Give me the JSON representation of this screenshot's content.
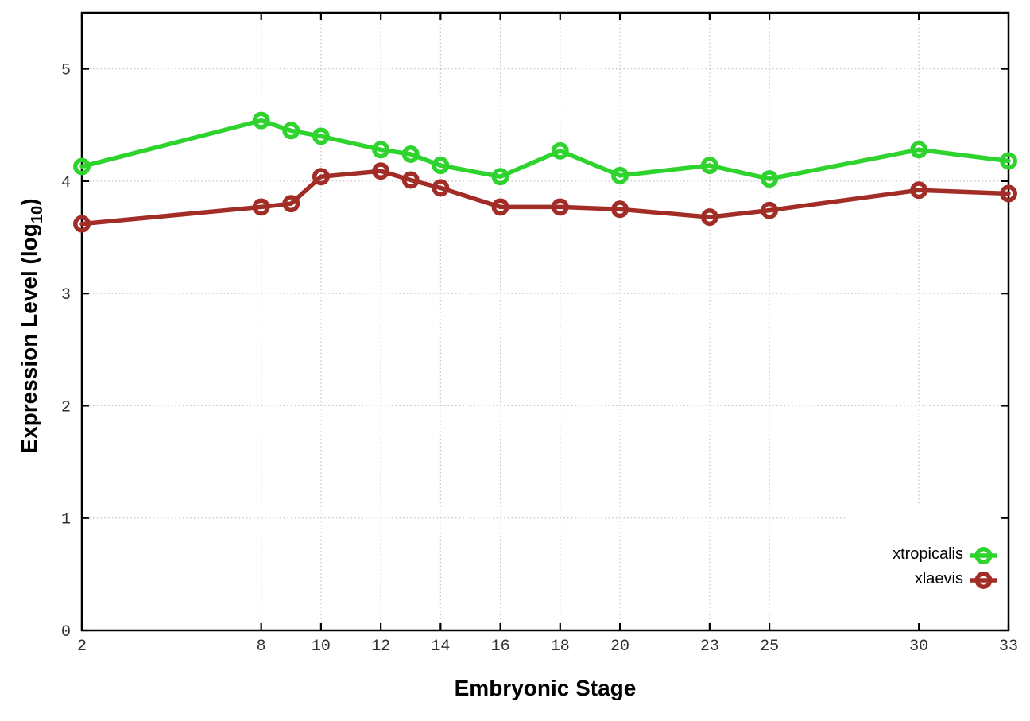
{
  "figure": {
    "background": "#ffffff"
  },
  "chart_data": {
    "type": "line",
    "title": "",
    "xlabel": "Embryonic Stage",
    "ylabel": {
      "prefix": "Expression Level (log",
      "sub": "10",
      "suffix": ")"
    },
    "x": [
      2,
      8,
      9,
      10,
      12,
      13,
      14,
      16,
      18,
      20,
      23,
      25,
      30,
      33
    ],
    "xtick_values": [
      2,
      8,
      10,
      12,
      14,
      16,
      18,
      20,
      23,
      25,
      30,
      33
    ],
    "xtick_labels": [
      "2",
      "8",
      "10",
      "12",
      "14",
      "16",
      "18",
      "20",
      "23",
      "25",
      "30",
      "33"
    ],
    "ytick_values": [
      0,
      1,
      2,
      3,
      4,
      5
    ],
    "ytick_labels": [
      "0",
      "1",
      "2",
      "3",
      "4",
      "5"
    ],
    "xlim": [
      2,
      33
    ],
    "ylim": [
      0,
      5.5
    ],
    "grid": true,
    "legend": {
      "position": "inside-bottom-right",
      "entries": [
        "xtropicalis",
        "xlaevis"
      ]
    },
    "series": [
      {
        "name": "xtropicalis",
        "color": "#2ed32e",
        "marker": "open-circle",
        "values": [
          4.13,
          4.54,
          4.45,
          4.4,
          4.28,
          4.24,
          4.14,
          4.04,
          4.27,
          4.05,
          4.14,
          4.02,
          4.28,
          4.18
        ]
      },
      {
        "name": "xlaevis",
        "color": "#a22d27",
        "marker": "open-circle",
        "values": [
          3.62,
          3.77,
          3.8,
          4.04,
          4.09,
          4.01,
          3.94,
          3.77,
          3.77,
          3.75,
          3.68,
          3.74,
          3.92,
          3.89
        ]
      }
    ]
  },
  "style_colors": {
    "grid": "#c4c4c4",
    "border": "#000000",
    "tick_label": "#303030"
  }
}
